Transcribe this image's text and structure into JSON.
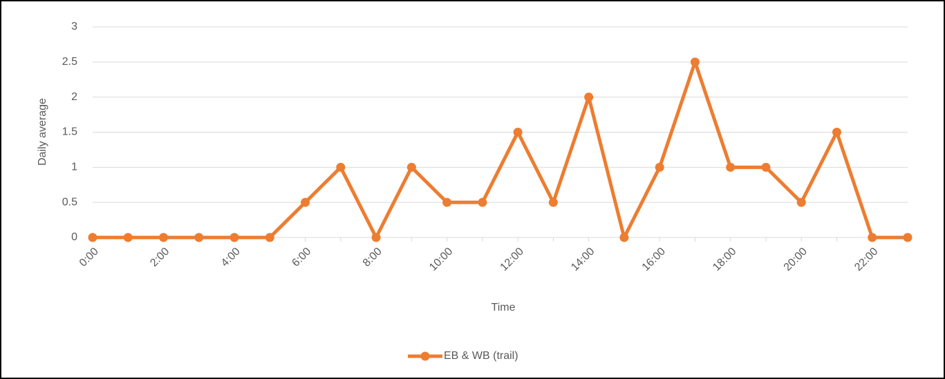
{
  "chart_data": {
    "type": "line",
    "x_label": "Time",
    "y_label": "Daily average",
    "categories": [
      "0:00",
      null,
      "2:00",
      null,
      "4:00",
      null,
      "6:00",
      null,
      "8:00",
      null,
      "10:00",
      null,
      "12:00",
      null,
      "14:00",
      null,
      "16:00",
      null,
      "18:00",
      null,
      "20:00",
      null,
      "22:00",
      null
    ],
    "series": [
      {
        "name": "EB & WB (trail)",
        "color": "#ed7d31",
        "values": [
          0,
          0,
          0,
          0,
          0,
          0,
          0.5,
          1,
          0,
          1,
          0.5,
          0.5,
          1.5,
          0.5,
          2,
          0,
          1,
          2.5,
          1,
          1,
          0.5,
          1.5,
          0,
          0
        ]
      }
    ],
    "ylim": [
      0,
      3
    ],
    "yticks": [
      0,
      0.5,
      1,
      1.5,
      2,
      2.5,
      3
    ],
    "grid": true,
    "legend": "bottom"
  }
}
